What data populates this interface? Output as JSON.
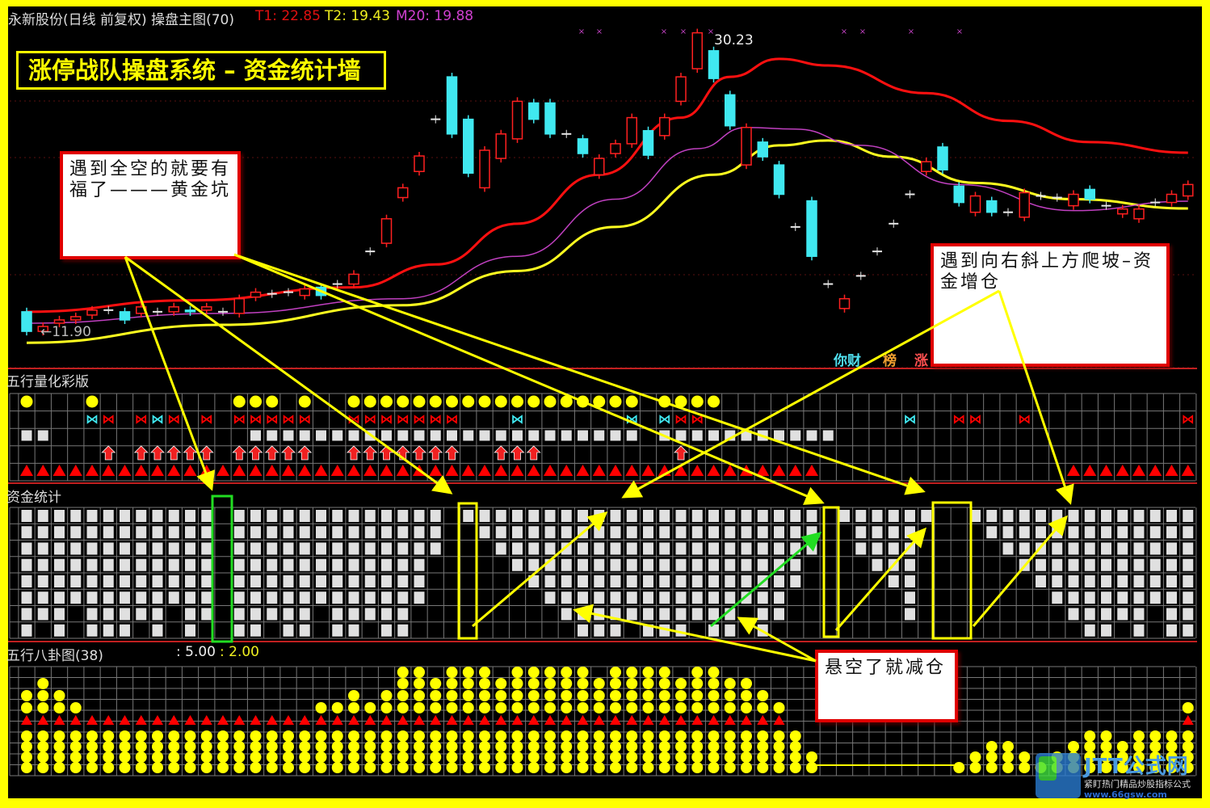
{
  "header": {
    "stock_title": "永新股份(日线 前复权) 操盘主图(70)",
    "t1_label": "T1: 22.85",
    "t2_label": "T2: 19.43",
    "m20_label": "M20: 19.88"
  },
  "banner_title": "涨停战队操盘系统 – 资金统计墙",
  "callouts": {
    "gold_pit": "遇到全空的就要有福了———黄金坑",
    "climb": "遇到向右斜上方爬坡–资金增仓",
    "reduce": "悬空了就减仓"
  },
  "price_labels": {
    "high": "30.23",
    "low": "←11.90"
  },
  "signal_marks": [
    "你财",
    "榜",
    "涨"
  ],
  "panels": {
    "wuxing_color": "五行量化彩版",
    "fund_stats": "资金统计",
    "bagua": "五行八卦图(38)",
    "bagua_v1": ": 5.00",
    "bagua_v2": ": 2.00"
  },
  "watermark": {
    "brand": "JTT公式网",
    "slogan": "紧盯热门精品炒股指标公式",
    "url": "www.66gsw.com"
  },
  "colors": {
    "up": "#ff2020",
    "down": "#40e8f0",
    "t1": "#ff1010",
    "t2": "#ffff20",
    "m20": "#c040c0",
    "frame": "#ffff00",
    "square": "#e0e0e0",
    "dot": "#ffff00"
  },
  "chart_data": {
    "type": "candlestick",
    "price_range": [
      11.9,
      30.23
    ],
    "candles_open_close": [
      [
        13.1,
        11.9
      ],
      [
        11.9,
        12.2
      ],
      [
        12.4,
        12.6
      ],
      [
        12.6,
        12.8
      ],
      [
        12.9,
        13.2
      ],
      [
        13.2,
        13.2
      ],
      [
        13.1,
        12.6
      ],
      [
        13.0,
        13.4
      ],
      [
        13.1,
        13.1
      ],
      [
        13.1,
        13.4
      ],
      [
        13.2,
        13.1
      ],
      [
        13.2,
        13.4
      ],
      [
        13.1,
        13.1
      ],
      [
        13.0,
        13.9
      ],
      [
        14.0,
        14.3
      ],
      [
        14.2,
        14.2
      ],
      [
        14.3,
        14.3
      ],
      [
        14.1,
        14.5
      ],
      [
        14.6,
        14.1
      ],
      [
        14.8,
        14.8
      ],
      [
        14.8,
        15.4
      ],
      [
        16.8,
        16.8
      ],
      [
        17.3,
        18.8
      ],
      [
        20.1,
        20.7
      ],
      [
        21.7,
        22.65
      ],
      [
        24.9,
        24.9
      ],
      [
        27.5,
        24.0
      ],
      [
        24.9,
        21.6
      ],
      [
        20.7,
        23.0
      ],
      [
        22.5,
        24.0
      ],
      [
        23.7,
        26.0
      ],
      [
        25.9,
        24.9
      ],
      [
        25.9,
        24.0
      ],
      [
        24.0,
        24.0
      ],
      [
        23.7,
        22.8
      ],
      [
        21.5,
        22.5
      ],
      [
        22.8,
        23.4
      ],
      [
        23.4,
        25.0
      ],
      [
        24.2,
        22.7
      ],
      [
        23.9,
        25.0
      ],
      [
        26.0,
        27.5
      ],
      [
        28.0,
        30.2
      ],
      [
        29.1,
        27.4
      ],
      [
        26.4,
        24.5
      ],
      [
        22.1,
        24.4
      ],
      [
        23.5,
        22.6
      ],
      [
        22.1,
        20.3
      ],
      [
        18.3,
        18.3
      ],
      [
        19.9,
        16.5
      ],
      [
        14.8,
        14.8
      ],
      [
        13.3,
        13.9
      ],
      [
        15.3,
        15.3
      ],
      [
        16.8,
        16.8
      ],
      [
        18.5,
        18.5
      ],
      [
        20.3,
        20.3
      ],
      [
        21.7,
        22.3
      ],
      [
        23.2,
        21.8
      ],
      [
        20.8,
        19.8
      ],
      [
        19.2,
        20.2
      ],
      [
        19.9,
        19.2
      ],
      [
        19.2,
        19.2
      ],
      [
        18.9,
        20.4
      ],
      [
        20.2,
        20.2
      ],
      [
        20.1,
        20.1
      ],
      [
        19.6,
        20.3
      ],
      [
        20.6,
        20.0
      ],
      [
        19.6,
        19.6
      ],
      [
        19.1,
        19.4
      ],
      [
        18.8,
        19.4
      ],
      [
        19.8,
        19.8
      ],
      [
        19.8,
        20.3
      ],
      [
        20.2,
        20.9
      ]
    ],
    "lines": [
      {
        "name": "T1",
        "points": [
          [
            0,
            13.1
          ],
          [
            10,
            13.8
          ],
          [
            20,
            14.6
          ],
          [
            25,
            16
          ],
          [
            30,
            18.5
          ],
          [
            35,
            21.5
          ],
          [
            40,
            25
          ],
          [
            43,
            27.5
          ],
          [
            46,
            28.6
          ],
          [
            49,
            28.2
          ],
          [
            55,
            26.5
          ],
          [
            60,
            24.8
          ],
          [
            65,
            23.5
          ],
          [
            71,
            22.85
          ]
        ]
      },
      {
        "name": "T2",
        "points": [
          [
            0,
            11.2
          ],
          [
            12,
            12.3
          ],
          [
            23,
            13.5
          ],
          [
            30,
            15.6
          ],
          [
            36,
            18.3
          ],
          [
            42,
            21.5
          ],
          [
            46,
            23.3
          ],
          [
            49,
            23.6
          ],
          [
            53,
            22.6
          ],
          [
            58,
            21
          ],
          [
            64,
            20
          ],
          [
            71,
            19.43
          ]
        ]
      },
      {
        "name": "M20",
        "points": [
          [
            0,
            12.4
          ],
          [
            12,
            13
          ],
          [
            23,
            13.9
          ],
          [
            30,
            16.5
          ],
          [
            36,
            20
          ],
          [
            41,
            23.1
          ],
          [
            44,
            24.4
          ],
          [
            47,
            24.3
          ],
          [
            51,
            23.3
          ],
          [
            57,
            20.9
          ],
          [
            64,
            19.3
          ],
          [
            71,
            19.88
          ]
        ]
      }
    ],
    "wuxing_rows": {
      "yellow_dots": "0,4,13-15,17,20-37,39-42",
      "cyan_butterflies": "4,8,30,37,39,54",
      "red_butterflies": "5,7,9,11,13-17,20-26,40-41,57-58,61,71",
      "white_squares": "0-1,14-37,39-49",
      "red_up_arrows": "5,7-11,13-17,20-26,29-31,40",
      "red_triangles": "0-48,64-71"
    },
    "fund_levels": [
      8,
      7,
      8,
      6,
      8,
      8,
      8,
      7,
      8,
      6,
      8,
      7,
      0,
      8,
      8,
      7,
      8,
      8,
      6,
      8,
      8,
      7,
      8,
      8,
      6,
      3,
      0,
      1,
      2,
      3,
      4,
      5,
      6,
      7,
      8,
      8,
      8,
      7,
      8,
      8,
      8,
      7,
      8,
      8,
      6,
      8,
      7,
      5,
      3,
      0,
      1,
      3,
      4,
      5,
      7,
      1,
      0,
      0,
      1,
      2,
      3,
      4,
      5,
      6,
      7,
      8,
      8,
      7,
      8,
      6,
      8,
      8
    ],
    "bagua_heights": [
      6,
      7,
      6,
      5,
      4,
      4,
      4,
      4,
      4,
      4,
      4,
      4,
      4,
      4,
      4,
      4,
      4,
      4,
      5,
      5,
      6,
      5,
      6,
      8,
      8,
      7,
      8,
      8,
      8,
      7,
      8,
      8,
      8,
      8,
      8,
      7,
      8,
      8,
      8,
      8,
      7,
      8,
      8,
      7,
      7,
      6,
      5,
      4,
      2,
      0,
      0,
      0,
      0,
      0,
      0,
      0,
      0,
      1,
      2,
      3,
      3,
      2,
      1,
      2,
      3,
      4,
      4,
      3,
      4,
      4,
      4,
      5
    ],
    "bagua_triangles": "0-46,71"
  }
}
